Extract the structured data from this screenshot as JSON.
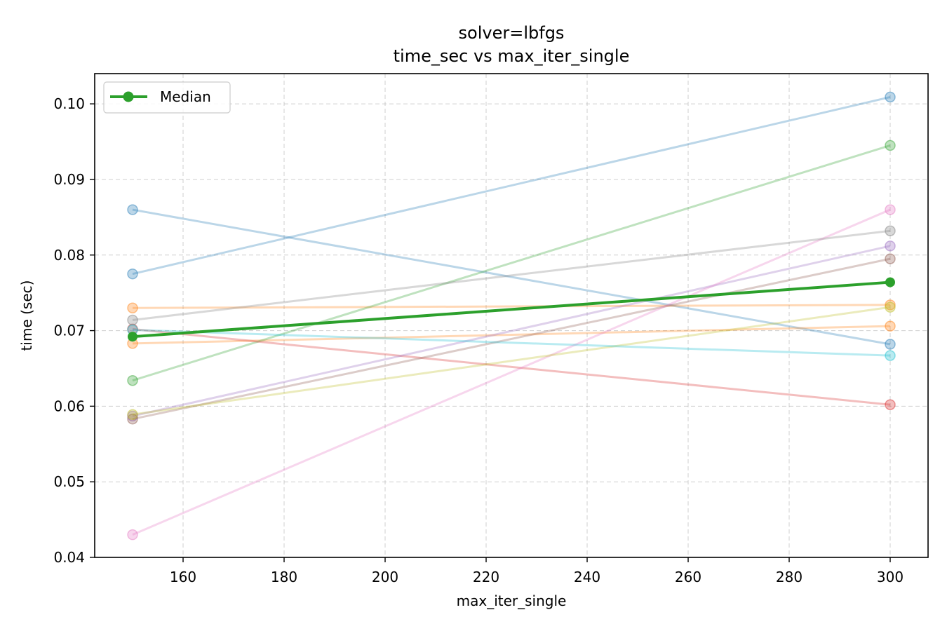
{
  "chart_data": {
    "type": "line",
    "title": "solver=lbfgs",
    "subtitle": "time_sec vs max_iter_single",
    "xlabel": "max_iter_single",
    "ylabel": "time (sec)",
    "xlim": [
      142.5,
      307.5
    ],
    "ylim": [
      0.04,
      0.104
    ],
    "xticks": [
      160,
      180,
      200,
      220,
      240,
      260,
      280,
      300
    ],
    "yticks": [
      0.04,
      0.05,
      0.06,
      0.07,
      0.08,
      0.09,
      0.1
    ],
    "ytick_labels": [
      "0.04",
      "0.05",
      "0.06",
      "0.07",
      "0.08",
      "0.09",
      "0.10"
    ],
    "grid": true,
    "legend_position": "top-left",
    "x": [
      150,
      300
    ],
    "series": [
      {
        "values": [
          0.0775,
          0.1009
        ],
        "color": "#1f77b4"
      },
      {
        "values": [
          0.086,
          0.0682
        ],
        "color": "#1f77b4"
      },
      {
        "values": [
          0.0683,
          0.0706
        ],
        "color": "#ff7f0e"
      },
      {
        "values": [
          0.073,
          0.0734
        ],
        "color": "#ff7f0e"
      },
      {
        "values": [
          0.0634,
          0.0945
        ],
        "color": "#2ca02c"
      },
      {
        "values": [
          0.0702,
          0.0602
        ],
        "color": "#d62728"
      },
      {
        "values": [
          0.0587,
          0.0812
        ],
        "color": "#9467bd"
      },
      {
        "values": [
          0.0583,
          0.0795
        ],
        "color": "#8c564b"
      },
      {
        "values": [
          0.043,
          0.086
        ],
        "color": "#e377c2"
      },
      {
        "values": [
          0.0714,
          0.0832
        ],
        "color": "#7f7f7f"
      },
      {
        "values": [
          0.0589,
          0.0731
        ],
        "color": "#bcbd22"
      },
      {
        "values": [
          0.0701,
          0.0667
        ],
        "color": "#17becf"
      },
      {
        "name": "Median",
        "values": [
          0.0692,
          0.0764
        ],
        "color": "#2ca02c",
        "highlight": true
      }
    ]
  }
}
